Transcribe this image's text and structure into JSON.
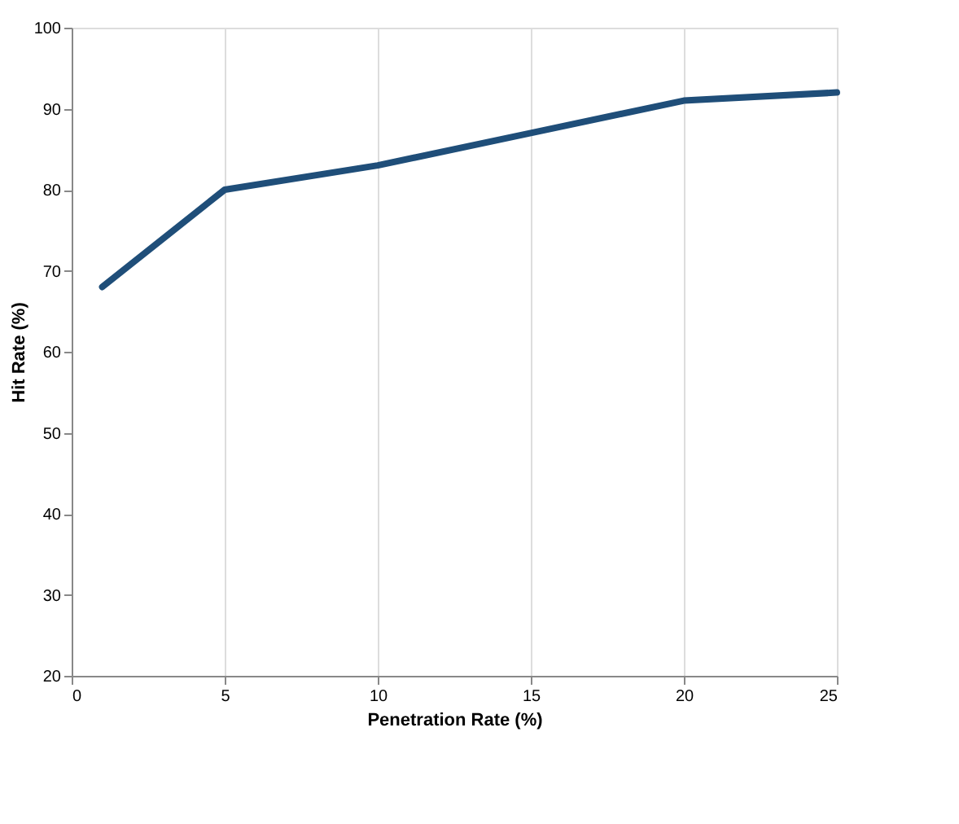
{
  "chart_data": {
    "type": "line",
    "xlabel": "Penetration Rate (%)",
    "ylabel": "Hit Rate (%)",
    "x": [
      1,
      5,
      10,
      15,
      20,
      25
    ],
    "series": [
      {
        "color": "#1f4e79",
        "values": [
          68,
          80,
          83,
          87,
          91,
          92
        ]
      }
    ],
    "xlim": [
      0,
      25
    ],
    "xticks": [
      0,
      5,
      10,
      15,
      20,
      25
    ],
    "ylim": [
      20,
      100
    ],
    "yticks": [
      20,
      30,
      40,
      50,
      60,
      70,
      80,
      90,
      100
    ],
    "grid": "x",
    "marker": "none",
    "line_style": "solid"
  }
}
